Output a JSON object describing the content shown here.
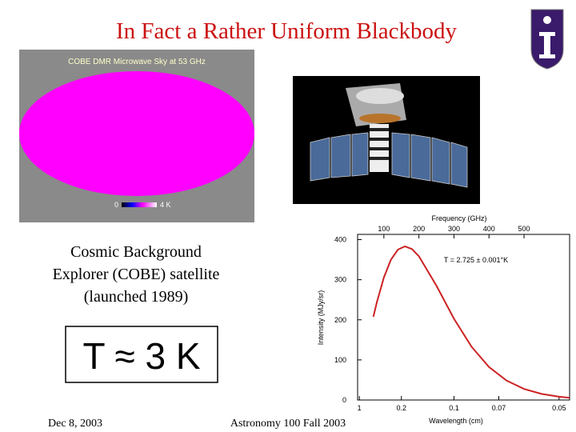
{
  "title": "In Fact a Rather Uniform Blackbody",
  "sky_map": {
    "title": "COBE DMR Microwave Sky at 53 GHz",
    "scale_min": "0",
    "scale_max": "4 K"
  },
  "caption": [
    "Cosmic Background",
    "Explorer (COBE) satellite",
    "(launched 1989)"
  ],
  "formula": "T ≈ 3 K",
  "footer": {
    "date": "Dec 8, 2003",
    "course": "Astronomy 100 Fall 2003"
  },
  "chart_data": {
    "type": "line",
    "color": "#cc2222",
    "xlabel": "Frequency (GHz)",
    "x2label": "Wavelength (cm)",
    "ylabel": "Intensity (MJy/sr)",
    "annotation": "T = 2.725 ± 0.001°K",
    "x": [
      70,
      80,
      100,
      120,
      140,
      160,
      180,
      200,
      250,
      300,
      350,
      400,
      450,
      500,
      550,
      600,
      630
    ],
    "values": [
      207.8,
      243.9,
      305.5,
      349.7,
      375.1,
      383.2,
      376.5,
      358.5,
      285.1,
      202.8,
      133.0,
      82.2,
      48.5,
      27.6,
      15.2,
      8.2,
      5.6
    ],
    "xlim": [
      25,
      630
    ],
    "xticks": [
      100,
      200,
      300,
      400,
      500
    ],
    "x2ticks": [
      {
        "value": 30,
        "label": "1"
      },
      {
        "value": 150,
        "label": "0.2"
      },
      {
        "value": 300,
        "label": "0.1"
      },
      {
        "value": 428,
        "label": "0.07"
      },
      {
        "value": 600,
        "label": "0.05"
      }
    ],
    "ylim": [
      0,
      413
    ],
    "yticks": [
      0,
      100,
      200,
      300,
      400
    ]
  }
}
